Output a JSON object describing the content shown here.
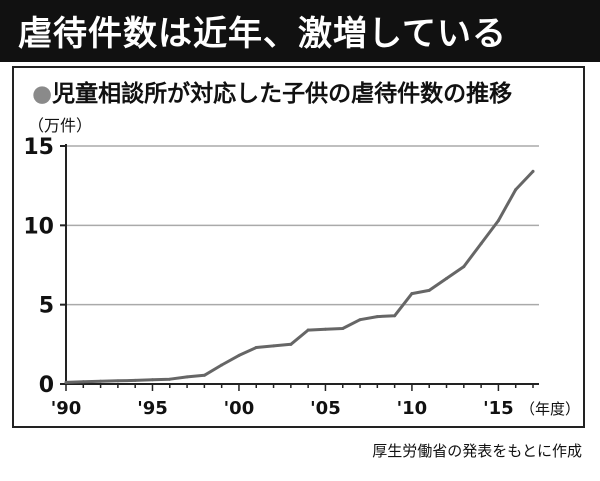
{
  "headline": "虐待件数は近年、激増している",
  "subtitle": {
    "bullet": "●",
    "text": "児童相談所が対応した子供の虐待件数の推移"
  },
  "unit_label": "（万件）",
  "source": "厚生労働省の発表をもとに作成",
  "colors": {
    "background": "#ffffff",
    "headline_bg": "#111111",
    "line": "#666666",
    "grid": "#aaaaaa",
    "axis": "#222222"
  },
  "chart_data": {
    "type": "line",
    "title": "児童相談所が対応した子供の虐待件数の推移",
    "ylabel": "（万件）",
    "xlabel": "（年度）",
    "xlim": [
      1990,
      2017
    ],
    "ylim": [
      0,
      15
    ],
    "yticks": [
      0,
      5,
      10,
      15
    ],
    "ytick_labels": [
      "0",
      "5",
      "10",
      "15"
    ],
    "xticks": [
      1990,
      1995,
      2000,
      2005,
      2010,
      2015
    ],
    "xtick_labels": [
      "'90",
      "'95",
      "'00",
      "'05",
      "'10",
      "'15"
    ],
    "grid": "horizontal",
    "x": [
      1990,
      1991,
      1992,
      1993,
      1994,
      1995,
      1996,
      1997,
      1998,
      1999,
      2000,
      2001,
      2002,
      2003,
      2004,
      2005,
      2006,
      2007,
      2008,
      2009,
      2010,
      2011,
      2012,
      2013,
      2014,
      2015,
      2016,
      2017
    ],
    "y": [
      0.1,
      0.14,
      0.17,
      0.2,
      0.23,
      0.27,
      0.3,
      0.45,
      0.55,
      1.2,
      1.8,
      2.3,
      2.4,
      2.5,
      3.4,
      3.45,
      3.5,
      4.05,
      4.25,
      4.3,
      5.7,
      5.9,
      6.65,
      7.4,
      8.85,
      10.3,
      12.25,
      13.4
    ]
  }
}
